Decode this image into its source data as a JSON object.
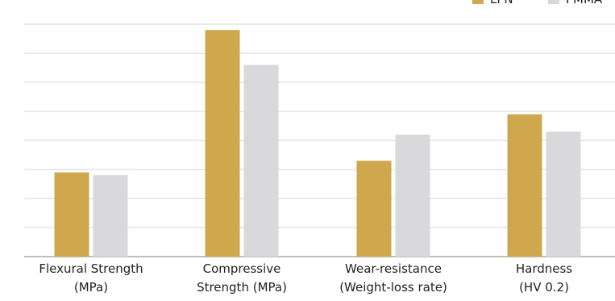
{
  "chart_data": {
    "type": "bar",
    "title": "",
    "xlabel": "",
    "ylabel": "",
    "ylim": [
      0,
      8
    ],
    "grid": true,
    "legend_position": "top-right",
    "categories": [
      [
        "Flexural Strength",
        "(MPa)"
      ],
      [
        "Compressive",
        "Strength (MPa)"
      ],
      [
        "Wear-resistance",
        "(Weight-loss rate)"
      ],
      [
        "Hardness",
        "(HV 0.2)"
      ]
    ],
    "series": [
      {
        "name": "LPN",
        "color": "#CFA84E",
        "values": [
          2.9,
          7.8,
          3.3,
          4.9
        ]
      },
      {
        "name": "PMMA",
        "color": "#D9D9DC",
        "values": [
          2.8,
          6.6,
          4.2,
          4.3
        ]
      }
    ]
  }
}
